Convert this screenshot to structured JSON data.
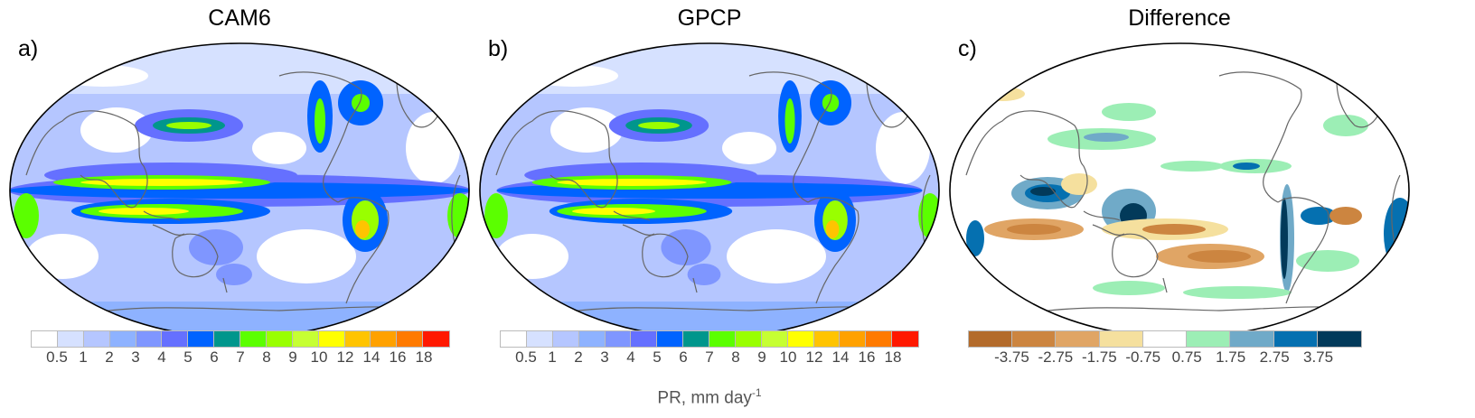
{
  "panels": [
    {
      "label": "a)",
      "title": "CAM6"
    },
    {
      "label": "b)",
      "title": "GPCP"
    },
    {
      "label": "c)",
      "title": "Difference"
    }
  ],
  "precip_colorbar": {
    "colors": [
      "#ffffff",
      "#d6e1ff",
      "#b5c6ff",
      "#8eb2ff",
      "#7f96ff",
      "#6570ff",
      "#0063ff",
      "#00968c",
      "#5bff00",
      "#99ff00",
      "#c6ff33",
      "#ffff00",
      "#ffc400",
      "#ffa100",
      "#ff7a00",
      "#ff1900"
    ],
    "ticks": [
      "0.5",
      "1",
      "2",
      "3",
      "4",
      "5",
      "6",
      "7",
      "8",
      "9",
      "10",
      "12",
      "14",
      "16",
      "18"
    ]
  },
  "diff_colorbar": {
    "colors": [
      "#b36b2b",
      "#cc8540",
      "#e0a565",
      "#f5e09e",
      "#ffffff",
      "#9ceeb5",
      "#70aac8",
      "#0570b0",
      "#023a5a"
    ],
    "ticks": [
      "-3.75",
      "-2.75",
      "-1.75",
      "-0.75",
      "0.75",
      "1.75",
      "2.75",
      "3.75"
    ]
  },
  "units": {
    "label": "PR, mm day",
    "exponent": "-1"
  }
}
